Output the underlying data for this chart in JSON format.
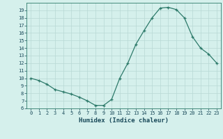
{
  "x": [
    0,
    1,
    2,
    3,
    4,
    5,
    6,
    7,
    8,
    9,
    10,
    11,
    12,
    13,
    14,
    15,
    16,
    17,
    18,
    19,
    20,
    21,
    22,
    23
  ],
  "y": [
    10,
    9.7,
    9.2,
    8.5,
    8.2,
    7.9,
    7.5,
    7.0,
    6.4,
    6.4,
    7.2,
    10.0,
    12.0,
    14.5,
    16.3,
    18.0,
    19.3,
    19.4,
    19.1,
    18.0,
    15.5,
    14.0,
    13.2,
    12.0
  ],
  "xlabel": "Humidex (Indice chaleur)",
  "xlim": [
    -0.5,
    23.5
  ],
  "ylim": [
    6,
    20
  ],
  "yticks": [
    6,
    7,
    8,
    9,
    10,
    11,
    12,
    13,
    14,
    15,
    16,
    17,
    18,
    19
  ],
  "xticks": [
    0,
    1,
    2,
    3,
    4,
    5,
    6,
    7,
    8,
    9,
    10,
    11,
    12,
    13,
    14,
    15,
    16,
    17,
    18,
    19,
    20,
    21,
    22,
    23
  ],
  "line_color": "#2d7a6a",
  "marker": "+",
  "bg_color": "#d5f0ec",
  "grid_color_major": "#b8d8d4",
  "grid_color_minor": "#c8e8e4",
  "xlabel_color": "#1a4a5a",
  "tick_color": "#1a4a5a"
}
